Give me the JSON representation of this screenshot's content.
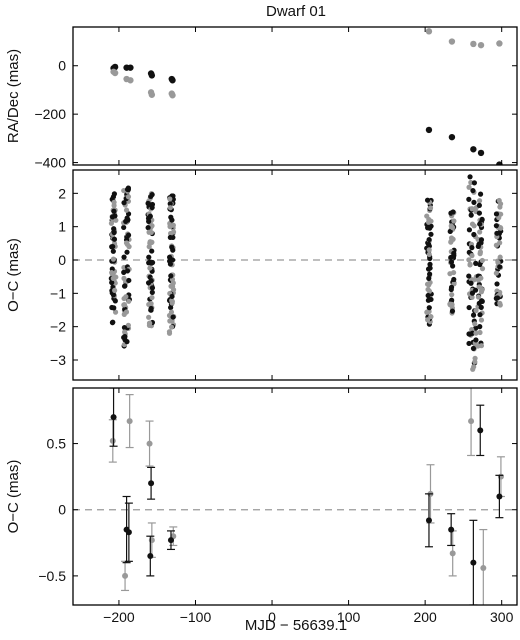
{
  "chart_data": {
    "title": "Dwarf 01",
    "xlabel": "MJD − 56639.1",
    "xlim": [
      -260,
      320
    ],
    "xticks": [
      -200,
      -100,
      0,
      100,
      200,
      300
    ],
    "xtick_labels": [
      "−200",
      "−100",
      "0",
      "100",
      "200",
      "300"
    ],
    "colors": {
      "ra": "#111111",
      "dec": "#999999",
      "axis": "#000000",
      "zero_line": "#999999"
    },
    "panels": [
      {
        "type": "scatter",
        "ylabel": "RA/Dec (mas)",
        "ylim": [
          -410,
          160
        ],
        "yticks": [
          0,
          -200,
          -400
        ],
        "ytick_labels": [
          "0",
          "−200",
          "−400"
        ],
        "zero_line": false,
        "series": [
          {
            "key": "ra",
            "points": [
              [
                -207,
                -10
              ],
              [
                -205,
                -5
              ],
              [
                -190,
                -8
              ],
              [
                -185,
                -8
              ],
              [
                -158,
                -32
              ],
              [
                -157,
                -40
              ],
              [
                -131,
                -55
              ],
              [
                -130,
                -60
              ],
              [
                205,
                -265
              ],
              [
                235,
                -295
              ],
              [
                263,
                -345
              ],
              [
                273,
                -360
              ],
              [
                297,
                -408
              ]
            ]
          },
          {
            "key": "dec",
            "points": [
              [
                -207,
                -25
              ],
              [
                -205,
                -30
              ],
              [
                -190,
                -55
              ],
              [
                -185,
                -60
              ],
              [
                -158,
                -110
              ],
              [
                -157,
                -120
              ],
              [
                -131,
                -115
              ],
              [
                -130,
                -122
              ],
              [
                205,
                142
              ],
              [
                235,
                100
              ],
              [
                263,
                90
              ],
              [
                273,
                85
              ],
              [
                297,
                92
              ]
            ]
          }
        ]
      },
      {
        "type": "scatter_strips",
        "ylabel": "O−C (mas)",
        "ylim": [
          -3.6,
          2.7
        ],
        "yticks": [
          2,
          1,
          0,
          -1,
          -2,
          -3
        ],
        "ytick_labels": [
          "2",
          "1",
          "0",
          "−1",
          "−2",
          "−3"
        ],
        "zero_line": true,
        "strips": [
          {
            "x": -207,
            "dx": 3,
            "min": -1.9,
            "max": 2.0,
            "n": 70
          },
          {
            "x": -190,
            "dx": 4,
            "min": -2.6,
            "max": 2.2,
            "n": 70
          },
          {
            "x": -159,
            "dx": 3,
            "min": -2.0,
            "max": 2.0,
            "n": 70
          },
          {
            "x": -131,
            "dx": 3,
            "min": -2.2,
            "max": 2.2,
            "n": 70
          },
          {
            "x": 205,
            "dx": 3,
            "min": -2.0,
            "max": 1.9,
            "n": 55
          },
          {
            "x": 235,
            "dx": 3,
            "min": -1.6,
            "max": 1.6,
            "n": 55
          },
          {
            "x": 262,
            "dx": 5,
            "min": -3.3,
            "max": 2.5,
            "n": 70
          },
          {
            "x": 272,
            "dx": 3,
            "min": -2.6,
            "max": 2.0,
            "n": 50
          },
          {
            "x": 296,
            "dx": 3,
            "min": -1.5,
            "max": 1.8,
            "n": 50
          }
        ]
      },
      {
        "type": "errorbar",
        "ylabel": "O−C (mas)",
        "ylim": [
          -0.72,
          0.92
        ],
        "yticks": [
          0.5,
          0,
          -0.5
        ],
        "ytick_labels": [
          "0.5",
          "0",
          "−0.5"
        ],
        "zero_line": true,
        "series": [
          {
            "key": "ra",
            "points": [
              {
                "x": -207,
                "y": 0.7,
                "err": 0.22
              },
              {
                "x": -190,
                "y": -0.15,
                "err": 0.25
              },
              {
                "x": -187,
                "y": -0.17,
                "err": 0.22
              },
              {
                "x": -158,
                "y": 0.2,
                "err": 0.12
              },
              {
                "x": -159,
                "y": -0.35,
                "err": 0.15
              },
              {
                "x": -132,
                "y": -0.23,
                "err": 0.07
              },
              {
                "x": 205,
                "y": -0.08,
                "err": 0.2
              },
              {
                "x": 234,
                "y": -0.15,
                "err": 0.12
              },
              {
                "x": 263,
                "y": -0.4,
                "err": 0.32
              },
              {
                "x": 272,
                "y": 0.6,
                "err": 0.19
              },
              {
                "x": 297,
                "y": 0.1,
                "err": 0.16
              }
            ]
          },
          {
            "key": "dec",
            "points": [
              {
                "x": -208,
                "y": 0.52,
                "err": 0.16
              },
              {
                "x": -186,
                "y": 0.67,
                "err": 0.2
              },
              {
                "x": -192,
                "y": -0.5,
                "err": 0.11
              },
              {
                "x": -160,
                "y": 0.5,
                "err": 0.17
              },
              {
                "x": -157,
                "y": -0.23,
                "err": 0.13
              },
              {
                "x": -129,
                "y": -0.2,
                "err": 0.07
              },
              {
                "x": 207,
                "y": 0.12,
                "err": 0.22
              },
              {
                "x": 236,
                "y": -0.33,
                "err": 0.17
              },
              {
                "x": 260,
                "y": 0.67,
                "err": 0.26
              },
              {
                "x": 276,
                "y": -0.44,
                "err": 0.29
              },
              {
                "x": 299,
                "y": 0.25,
                "err": 0.15
              }
            ]
          }
        ]
      }
    ]
  }
}
